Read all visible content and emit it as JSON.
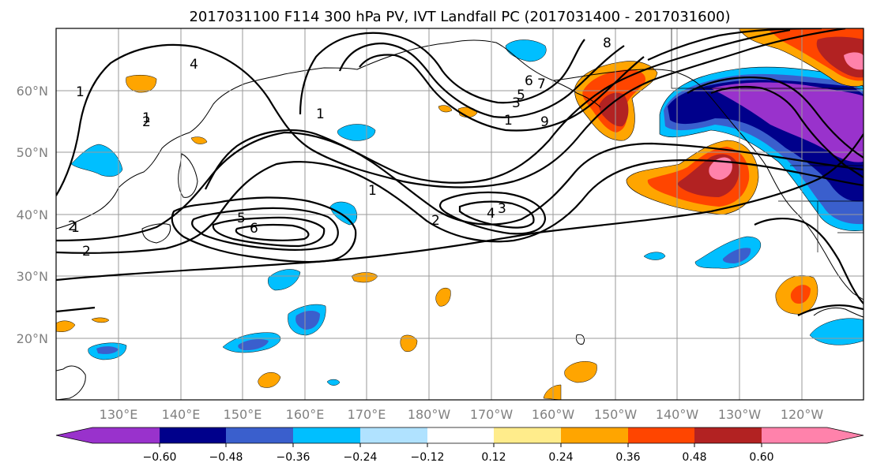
{
  "figure": {
    "title": "2017031100 F114 300 hPa PV, IVT Landfall PC (2017031400 - 2017031600)"
  },
  "map": {
    "lat_labels": [
      "60°N",
      "50°N",
      "40°N",
      "30°N",
      "20°N"
    ],
    "lon_labels": [
      "130°E",
      "140°E",
      "150°E",
      "160°E",
      "170°E",
      "180°W",
      "170°W",
      "160°W",
      "150°W",
      "140°W",
      "130°W",
      "120°W"
    ],
    "pv_contour_labels": [
      "1",
      "2",
      "4",
      "2",
      "1",
      "5",
      "6",
      "1",
      "2",
      "4",
      "3",
      "8",
      "7",
      "6",
      "5",
      "3",
      "1",
      "9",
      "1",
      "2",
      "1"
    ]
  },
  "colorbar": {
    "tick_labels": [
      "−0.60",
      "−0.48",
      "−0.36",
      "−0.24",
      "−0.12",
      "0.12",
      "0.24",
      "0.36",
      "0.48",
      "0.60"
    ],
    "colors": [
      "#9932cc",
      "#00008b",
      "#3a5fcd",
      "#00bfff",
      "#b0e2ff",
      "#ffffff",
      "#ffec8b",
      "#ffa500",
      "#ff4500",
      "#b22222",
      "#ff82ab"
    ]
  }
}
